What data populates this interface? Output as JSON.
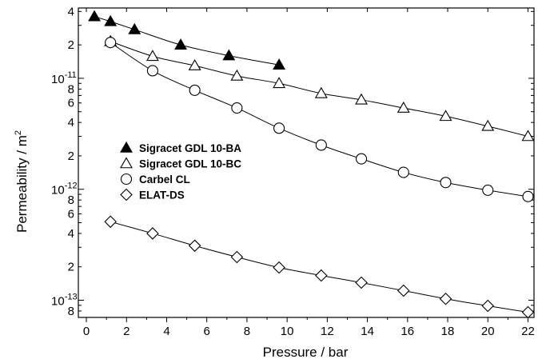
{
  "chart_data": {
    "type": "scatter",
    "title": "",
    "xlabel": "Pressure / bar",
    "ylabel": "Permeability / m",
    "ylabel_superscript": "2",
    "xlim": [
      -0.4,
      22.3
    ],
    "ylim": [
      7e-14,
      4.3e-11
    ],
    "y_scale": "log",
    "x_ticks": [
      0,
      2,
      4,
      6,
      8,
      10,
      12,
      14,
      16,
      18,
      20,
      22
    ],
    "x_tick_labels": [
      "0",
      "2",
      "4",
      "6",
      "8",
      "10",
      "12",
      "14",
      "16",
      "18",
      "20",
      "22"
    ],
    "y_ticks": [
      {
        "value": 4e-11,
        "label": "4",
        "sup": ""
      },
      {
        "value": 2e-11,
        "label": "2",
        "sup": ""
      },
      {
        "value": 1e-11,
        "label": "10",
        "sup": "-11"
      },
      {
        "value": 8e-12,
        "label": "8",
        "sup": ""
      },
      {
        "value": 6e-12,
        "label": "6",
        "sup": ""
      },
      {
        "value": 4e-12,
        "label": "4",
        "sup": ""
      },
      {
        "value": 2e-12,
        "label": "2",
        "sup": ""
      },
      {
        "value": 1e-12,
        "label": "10",
        "sup": "-12"
      },
      {
        "value": 8e-13,
        "label": "8",
        "sup": ""
      },
      {
        "value": 6e-13,
        "label": "6",
        "sup": ""
      },
      {
        "value": 4e-13,
        "label": "4",
        "sup": ""
      },
      {
        "value": 2e-13,
        "label": "2",
        "sup": ""
      },
      {
        "value": 1e-13,
        "label": "10",
        "sup": "-13"
      },
      {
        "value": 8e-14,
        "label": "8",
        "sup": ""
      }
    ],
    "grid": false,
    "legend": "center-left",
    "series": [
      {
        "name": "Sigracet GDL 10-BA",
        "marker": "triangle-filled",
        "x": [
          0.4,
          1.2,
          2.4,
          4.7,
          7.1,
          9.6
        ],
        "y": [
          3.6e-11,
          3.25e-11,
          2.75e-11,
          2e-11,
          1.6e-11,
          1.32e-11
        ]
      },
      {
        "name": "Sigracet GDL 10-BC",
        "marker": "triangle-open",
        "x": [
          1.2,
          3.3,
          5.4,
          7.5,
          9.6,
          11.7,
          13.7,
          15.8,
          17.9,
          20.0,
          22.0
        ],
        "y": [
          2.15e-11,
          1.58e-11,
          1.3e-11,
          1.05e-11,
          9e-12,
          7.3e-12,
          6.4e-12,
          5.4e-12,
          4.55e-12,
          3.7e-12,
          3e-12
        ]
      },
      {
        "name": "Carbel CL",
        "marker": "circle-open",
        "x": [
          1.2,
          3.3,
          5.4,
          7.5,
          9.6,
          11.7,
          13.7,
          15.8,
          17.9,
          20.0,
          22.0
        ],
        "y": [
          2.1e-11,
          1.17e-11,
          7.8e-12,
          5.4e-12,
          3.55e-12,
          2.5e-12,
          1.88e-12,
          1.42e-12,
          1.15e-12,
          9.8e-13,
          8.6e-13
        ]
      },
      {
        "name": "ELAT-DS",
        "marker": "diamond-open",
        "x": [
          1.2,
          3.3,
          5.4,
          7.5,
          9.6,
          11.7,
          13.7,
          15.8,
          17.9,
          20.0,
          22.0
        ],
        "y": [
          5.1e-13,
          4e-13,
          3.1e-13,
          2.45e-13,
          1.97e-13,
          1.67e-13,
          1.44e-13,
          1.22e-13,
          1.03e-13,
          8.9e-14,
          7.8e-14
        ]
      }
    ]
  }
}
